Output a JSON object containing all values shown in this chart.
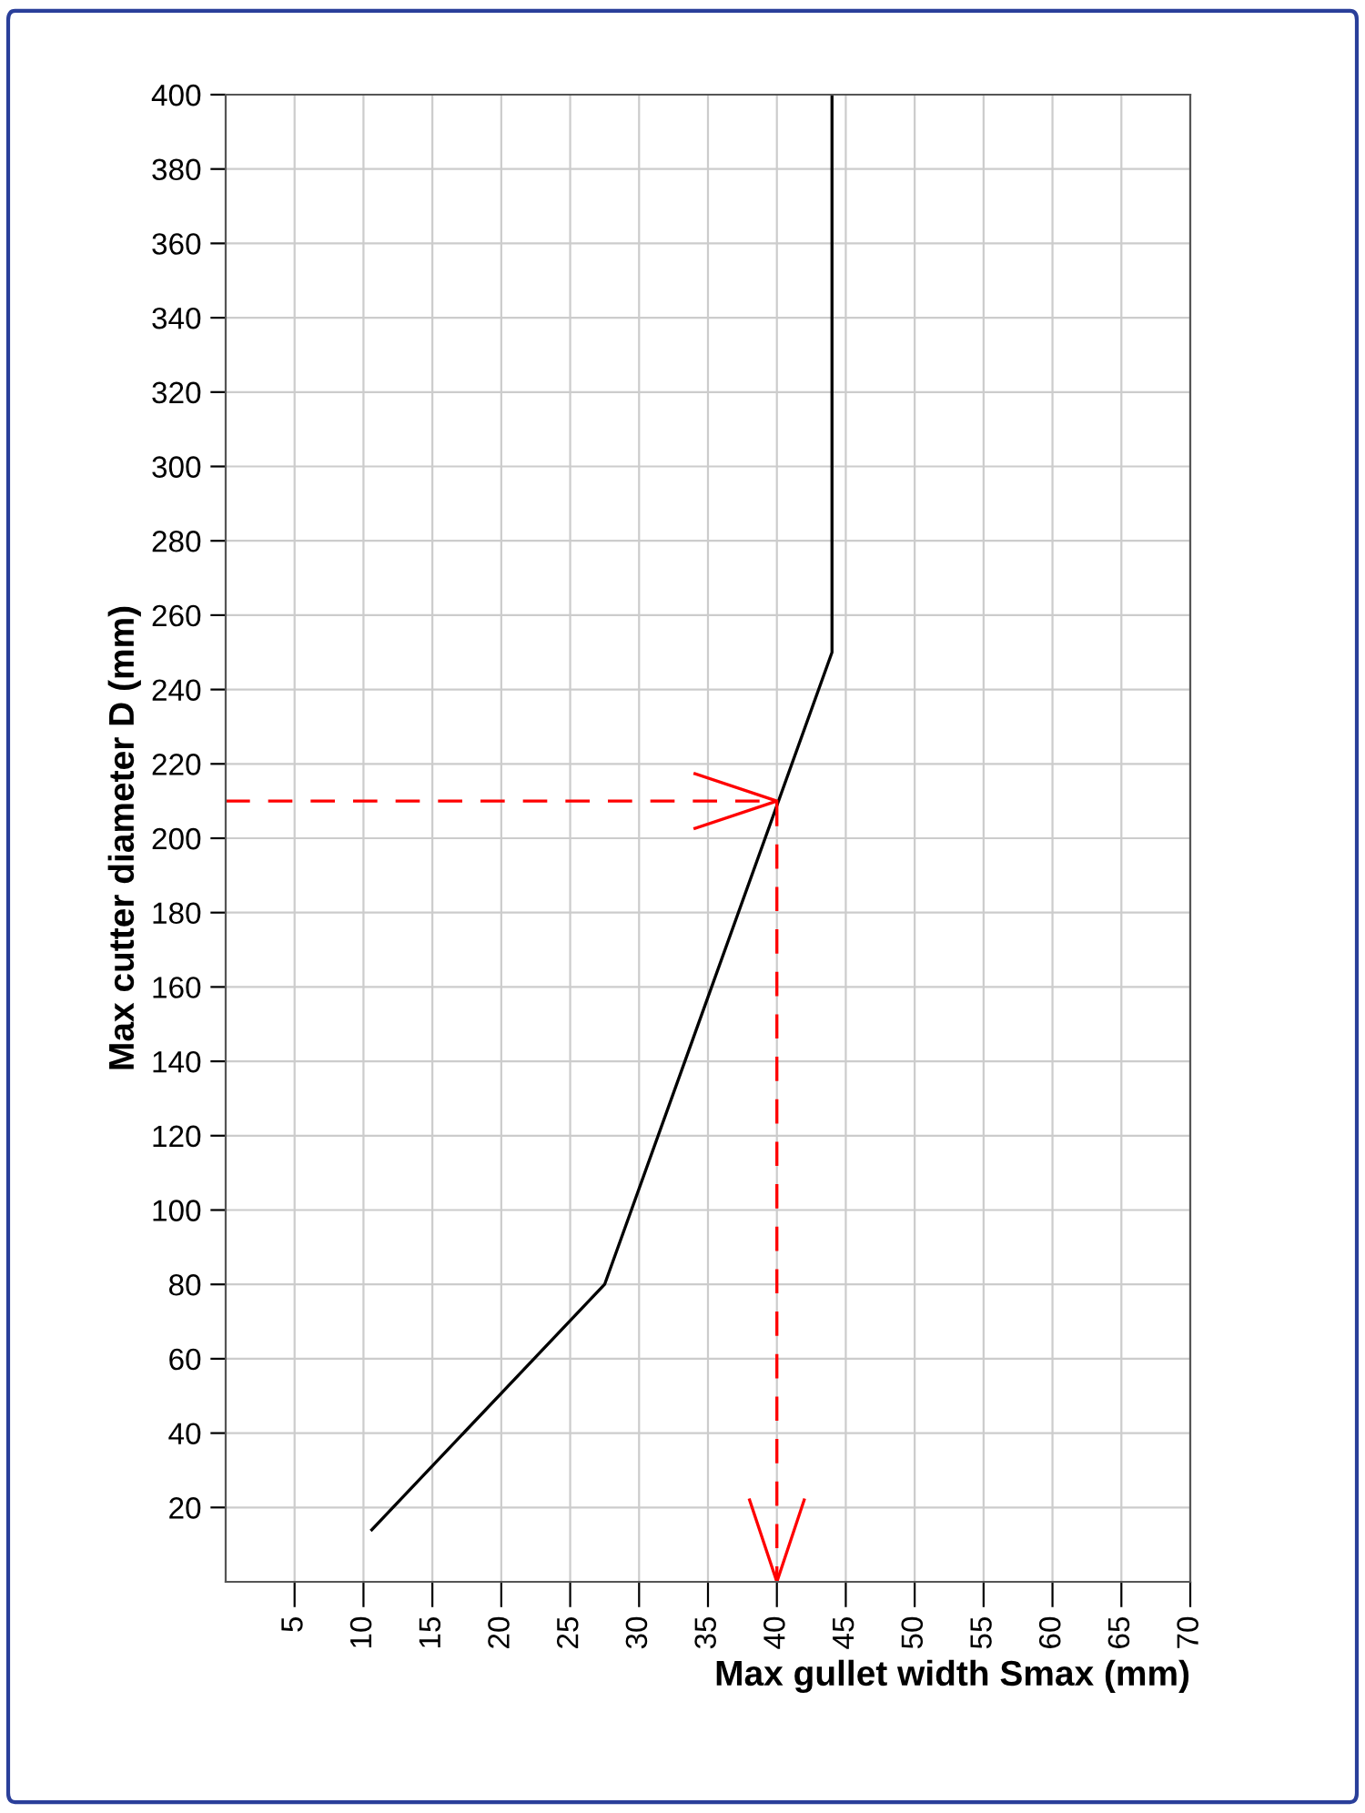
{
  "chart_data": {
    "type": "line",
    "xlabel": "Max gullet width Smax (mm)",
    "ylabel": "Max cutter diameter D (mm)",
    "xlim": [
      0,
      70
    ],
    "xticks": [
      5,
      10,
      15,
      20,
      25,
      30,
      35,
      40,
      45,
      50,
      55,
      60,
      65,
      70
    ],
    "ylim": [
      0,
      400
    ],
    "yticks": [
      20,
      40,
      60,
      80,
      100,
      120,
      140,
      160,
      180,
      200,
      220,
      240,
      260,
      280,
      300,
      320,
      340,
      360,
      380,
      400
    ],
    "grid": true,
    "marker": "none",
    "series": [
      {
        "color": "#000000",
        "x": [
          10.6,
          27.5,
          44,
          44
        ],
        "values": [
          14,
          80,
          250,
          400
        ],
        "line_style": "solid"
      },
      {
        "color": "#ff0000",
        "x": [
          0,
          40,
          40
        ],
        "values": [
          210,
          210,
          0
        ],
        "line_style": "dashed"
      }
    ]
  }
}
